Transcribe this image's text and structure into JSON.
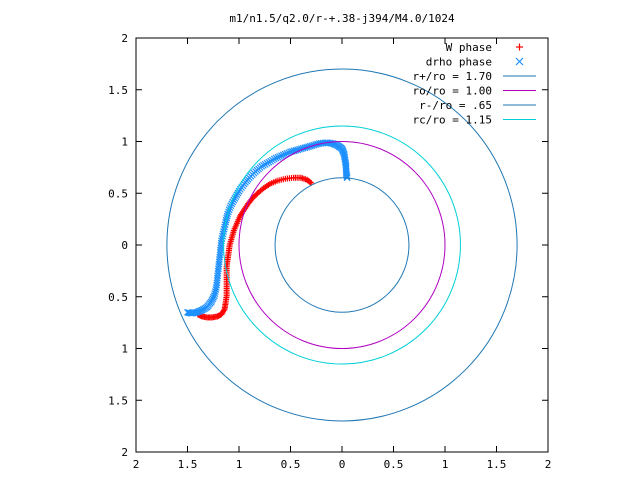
{
  "chart_data": {
    "type": "scatter",
    "title": "m1/n1.5/q2.0/r-+.38-j394/M4.0/1024",
    "xlim": [
      -2,
      2
    ],
    "ylim": [
      -2,
      2
    ],
    "x_ticks": [
      -2,
      -1.5,
      -1,
      -0.5,
      0,
      0.5,
      1,
      1.5,
      2
    ],
    "y_ticks": [
      -2,
      -1.5,
      -1,
      -0.5,
      0,
      0.5,
      1,
      1.5,
      2
    ],
    "x_tick_labels": [
      "2",
      "1.5",
      "1",
      "0.5",
      "0",
      "0.5",
      "1",
      "1.5",
      "2"
    ],
    "y_tick_labels": [
      "2",
      "1.5",
      "1",
      "0.5",
      "0",
      "0.5",
      "1",
      "1.5",
      "2"
    ],
    "grid": false,
    "legend_position": "top-right",
    "series": [
      {
        "name": "W phase",
        "kind": "points",
        "marker": "plus",
        "color": "#ff0000",
        "points": [
          [
            -0.3,
            0.6
          ],
          [
            -0.34,
            0.63
          ],
          [
            -0.4,
            0.65
          ],
          [
            -0.47,
            0.65
          ],
          [
            -0.55,
            0.64
          ],
          [
            -0.63,
            0.62
          ],
          [
            -0.7,
            0.59
          ],
          [
            -0.76,
            0.55
          ],
          [
            -0.82,
            0.5
          ],
          [
            -0.87,
            0.45
          ],
          [
            -0.91,
            0.4
          ],
          [
            -0.95,
            0.34
          ],
          [
            -0.99,
            0.28
          ],
          [
            -1.02,
            0.21
          ],
          [
            -1.05,
            0.14
          ],
          [
            -1.07,
            0.07
          ],
          [
            -1.09,
            0.0
          ],
          [
            -1.1,
            -0.07
          ],
          [
            -1.11,
            -0.14
          ],
          [
            -1.12,
            -0.21
          ],
          [
            -1.12,
            -0.28
          ],
          [
            -1.12,
            -0.35
          ],
          [
            -1.12,
            -0.42
          ],
          [
            -1.12,
            -0.49
          ],
          [
            -1.13,
            -0.56
          ],
          [
            -1.14,
            -0.62
          ],
          [
            -1.17,
            -0.67
          ],
          [
            -1.21,
            -0.69
          ],
          [
            -1.26,
            -0.7
          ],
          [
            -1.31,
            -0.7
          ],
          [
            -1.36,
            -0.69
          ],
          [
            -1.4,
            -0.67
          ]
        ]
      },
      {
        "name": "drho phase",
        "kind": "points",
        "marker": "cross",
        "color": "#1e90ff",
        "points": [
          [
            0.05,
            0.65
          ],
          [
            0.04,
            0.7
          ],
          [
            0.04,
            0.76
          ],
          [
            0.03,
            0.82
          ],
          [
            0.02,
            0.88
          ],
          [
            0.0,
            0.93
          ],
          [
            -0.04,
            0.96
          ],
          [
            -0.09,
            0.98
          ],
          [
            -0.15,
            0.99
          ],
          [
            -0.22,
            0.98
          ],
          [
            -0.29,
            0.96
          ],
          [
            -0.36,
            0.94
          ],
          [
            -0.43,
            0.92
          ],
          [
            -0.5,
            0.9
          ],
          [
            -0.57,
            0.87
          ],
          [
            -0.64,
            0.84
          ],
          [
            -0.71,
            0.8
          ],
          [
            -0.78,
            0.76
          ],
          [
            -0.84,
            0.71
          ],
          [
            -0.9,
            0.65
          ],
          [
            -0.95,
            0.59
          ],
          [
            -1.0,
            0.52
          ],
          [
            -1.04,
            0.45
          ],
          [
            -1.08,
            0.38
          ],
          [
            -1.11,
            0.3
          ],
          [
            -1.13,
            0.22
          ],
          [
            -1.15,
            0.13
          ],
          [
            -1.17,
            0.04
          ],
          [
            -1.18,
            -0.05
          ],
          [
            -1.19,
            -0.14
          ],
          [
            -1.2,
            -0.23
          ],
          [
            -1.21,
            -0.32
          ],
          [
            -1.22,
            -0.41
          ],
          [
            -1.24,
            -0.49
          ],
          [
            -1.27,
            -0.55
          ],
          [
            -1.31,
            -0.6
          ],
          [
            -1.36,
            -0.63
          ],
          [
            -1.41,
            -0.65
          ],
          [
            -1.46,
            -0.66
          ],
          [
            -1.5,
            -0.65
          ]
        ]
      },
      {
        "name": "r+/ro = 1.70",
        "kind": "circle",
        "radius": 1.7,
        "color": "#1f77b4"
      },
      {
        "name": "ro/ro = 1.00",
        "kind": "circle",
        "radius": 1.0,
        "color": "#b000c0"
      },
      {
        "name": "r-/ro = .65",
        "kind": "circle",
        "radius": 0.65,
        "color": "#1f77b4"
      },
      {
        "name": "rc/ro = 1.15",
        "kind": "circle",
        "radius": 1.15,
        "color": "#00d0d8"
      }
    ]
  }
}
